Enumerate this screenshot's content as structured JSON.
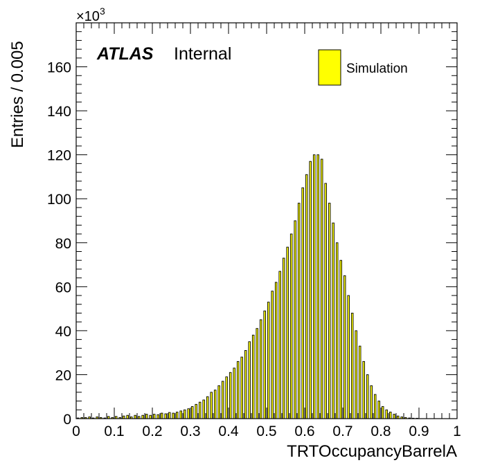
{
  "chart_data": {
    "type": "bar",
    "histogram": true,
    "x_label": "TRTOccupancyBarrelA",
    "y_label": "Entries / 0.005",
    "y_multiplier": "×10",
    "y_multiplier_exp": "3",
    "xlim": [
      0,
      1
    ],
    "ylim": [
      0,
      180
    ],
    "bin_width": 0.005,
    "x_ticks": [
      "0",
      "0.1",
      "0.2",
      "0.3",
      "0.4",
      "0.5",
      "0.6",
      "0.7",
      "0.8",
      "0.9",
      "1"
    ],
    "y_ticks": [
      "0",
      "20",
      "40",
      "60",
      "80",
      "100",
      "120",
      "140",
      "160"
    ],
    "label_main": "ATLAS",
    "label_sub": "Internal",
    "legend": [
      {
        "name": "Simulation",
        "color": "#ffff00"
      }
    ],
    "fill_color": "#ffff00",
    "line_color": "#000000",
    "bins": [
      [
        0.005,
        0.3
      ],
      [
        0.015,
        0.5
      ],
      [
        0.025,
        0.5
      ],
      [
        0.035,
        0.8
      ],
      [
        0.045,
        0.3
      ],
      [
        0.055,
        0.8
      ],
      [
        0.065,
        0.5
      ],
      [
        0.075,
        0.3
      ],
      [
        0.085,
        1.0
      ],
      [
        0.095,
        0.5
      ],
      [
        0.105,
        1.0
      ],
      [
        0.115,
        0.5
      ],
      [
        0.125,
        1.2
      ],
      [
        0.135,
        1.5
      ],
      [
        0.145,
        0.8
      ],
      [
        0.155,
        1.5
      ],
      [
        0.165,
        1.0
      ],
      [
        0.175,
        1.5
      ],
      [
        0.185,
        2.0
      ],
      [
        0.195,
        1.5
      ],
      [
        0.205,
        2.0
      ],
      [
        0.215,
        1.8
      ],
      [
        0.225,
        2.5
      ],
      [
        0.235,
        2.2
      ],
      [
        0.245,
        2.8
      ],
      [
        0.255,
        2.5
      ],
      [
        0.265,
        3.0
      ],
      [
        0.275,
        3.5
      ],
      [
        0.285,
        4.0
      ],
      [
        0.295,
        4.5
      ],
      [
        0.305,
        5.5
      ],
      [
        0.315,
        6.5
      ],
      [
        0.325,
        7.5
      ],
      [
        0.335,
        8.5
      ],
      [
        0.345,
        10.0
      ],
      [
        0.355,
        12.0
      ],
      [
        0.365,
        13.0
      ],
      [
        0.375,
        15.0
      ],
      [
        0.385,
        17.0
      ],
      [
        0.395,
        19.0
      ],
      [
        0.405,
        21.0
      ],
      [
        0.415,
        23.0
      ],
      [
        0.425,
        26.0
      ],
      [
        0.435,
        28.0
      ],
      [
        0.445,
        31.0
      ],
      [
        0.455,
        35.0
      ],
      [
        0.465,
        38.0
      ],
      [
        0.475,
        41.0
      ],
      [
        0.485,
        45.0
      ],
      [
        0.495,
        49.0
      ],
      [
        0.505,
        53.0
      ],
      [
        0.515,
        58.0
      ],
      [
        0.525,
        62.0
      ],
      [
        0.535,
        67.0
      ],
      [
        0.545,
        73.0
      ],
      [
        0.555,
        78.0
      ],
      [
        0.565,
        84.0
      ],
      [
        0.575,
        90.0
      ],
      [
        0.585,
        98.0
      ],
      [
        0.595,
        105.0
      ],
      [
        0.605,
        111.0
      ],
      [
        0.615,
        117.0
      ],
      [
        0.625,
        120.0
      ],
      [
        0.635,
        120.0
      ],
      [
        0.645,
        118.0
      ],
      [
        0.655,
        107.0
      ],
      [
        0.665,
        98.0
      ],
      [
        0.675,
        89.0
      ],
      [
        0.685,
        80.0
      ],
      [
        0.695,
        72.0
      ],
      [
        0.705,
        65.0
      ],
      [
        0.715,
        56.0
      ],
      [
        0.725,
        48.0
      ],
      [
        0.735,
        40.0
      ],
      [
        0.745,
        33.0
      ],
      [
        0.755,
        26.0
      ],
      [
        0.765,
        20.0
      ],
      [
        0.775,
        15.0
      ],
      [
        0.785,
        11.0
      ],
      [
        0.795,
        8.0
      ],
      [
        0.805,
        5.5
      ],
      [
        0.815,
        4.0
      ],
      [
        0.825,
        3.0
      ],
      [
        0.835,
        2.0
      ],
      [
        0.845,
        1.2
      ],
      [
        0.855,
        0.8
      ],
      [
        0.865,
        0.5
      ],
      [
        0.875,
        0.3
      ],
      [
        0.885,
        0.2
      ],
      [
        0.895,
        0.1
      ]
    ]
  }
}
